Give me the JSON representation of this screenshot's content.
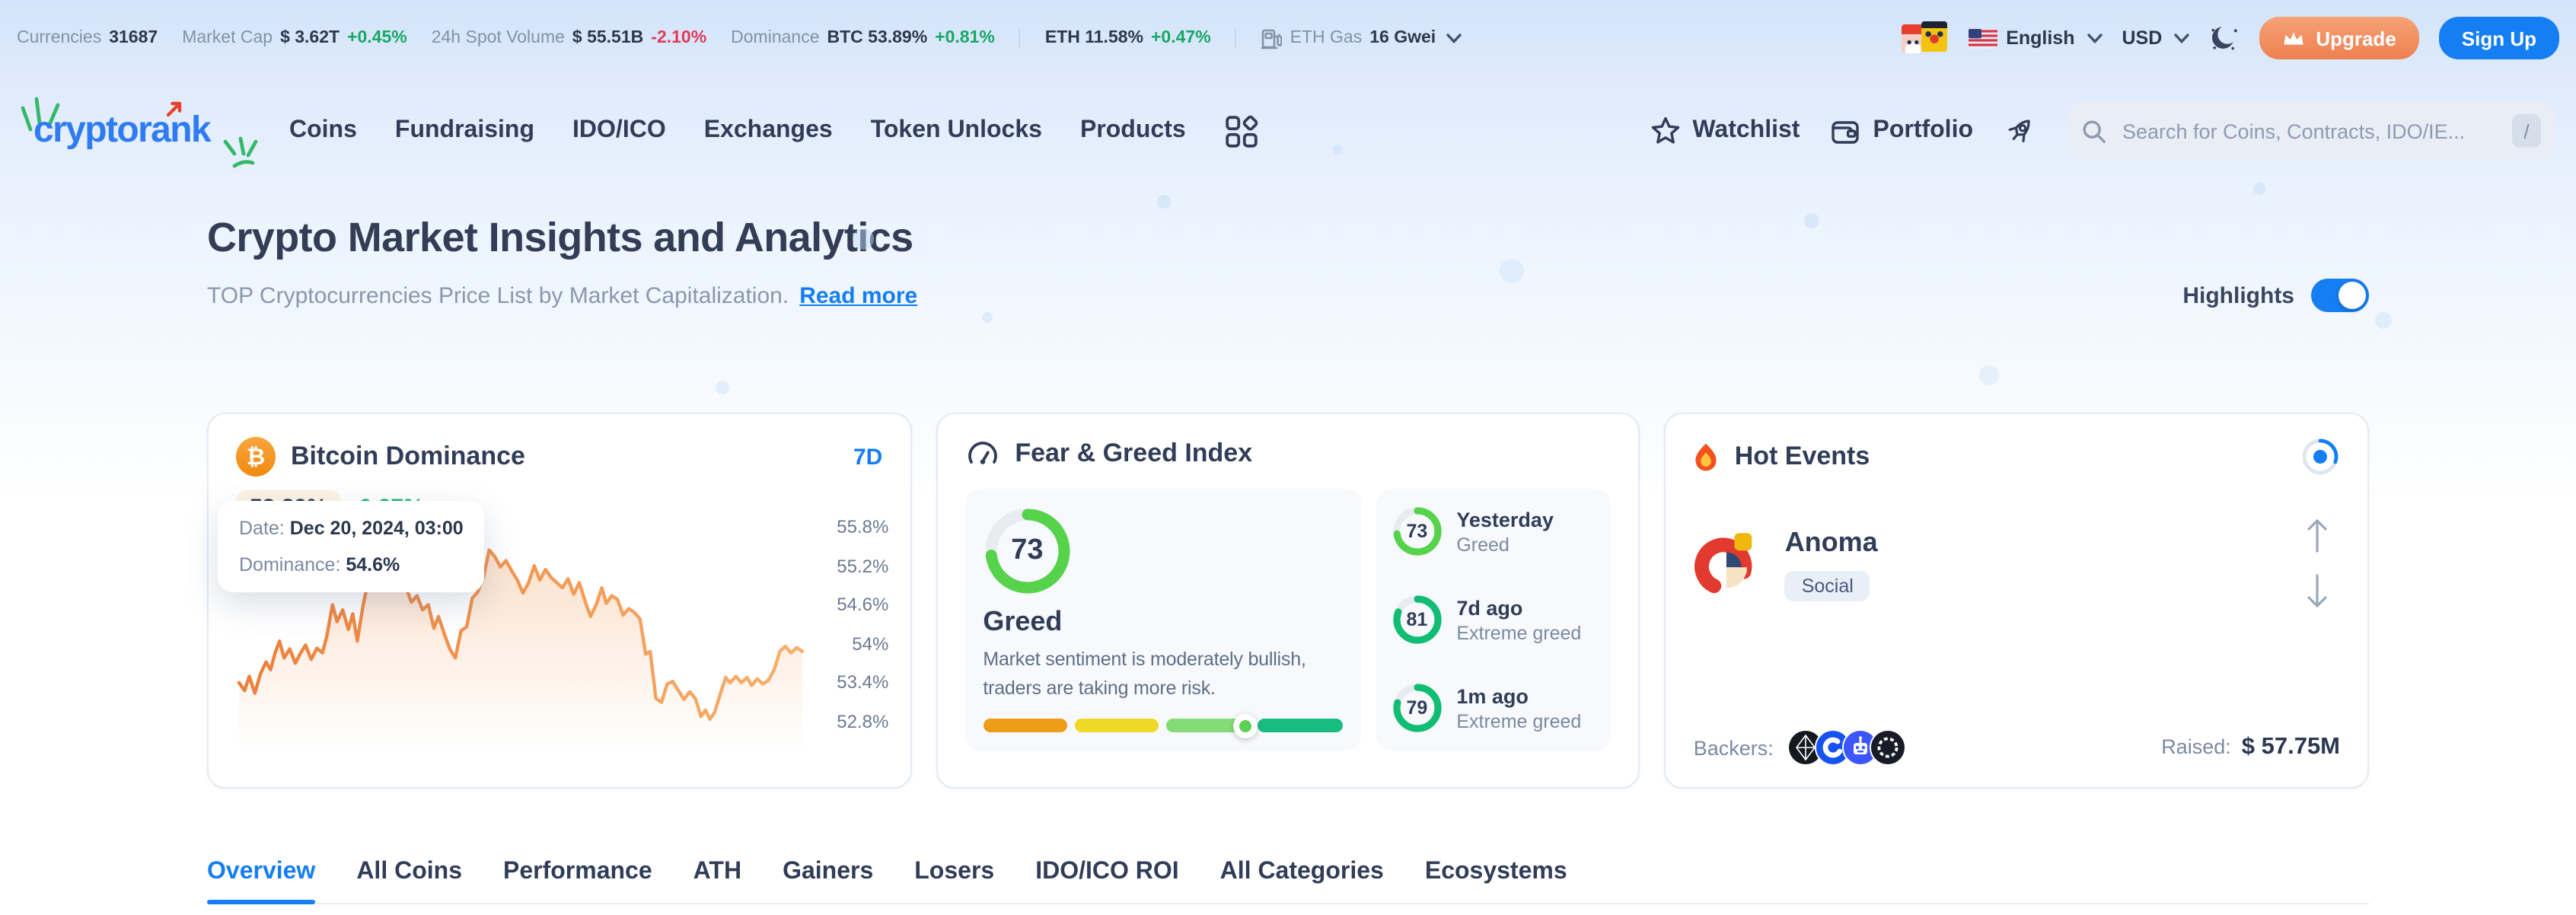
{
  "colors": {
    "accent_blue": "#157ef3",
    "positive_green": "#17a864",
    "negative_red": "#e13b56",
    "chart_line_orange": "#f08a48",
    "gauge_green": "#56d24b",
    "gauge_teal": "#10bd72",
    "upgrade_orange": "#ee8051",
    "value_badge_bg": "#fdf3e3"
  },
  "ticker": {
    "currencies_label": "Currencies",
    "currencies_value": "31687",
    "market_cap_label": "Market Cap",
    "market_cap_value": "$ 3.62T",
    "market_cap_change": "+0.45%",
    "volume_label": "24h Spot Volume",
    "volume_value": "$ 55.51B",
    "volume_change": "-2.10%",
    "dominance_label": "Dominance",
    "btc_value": "BTC 53.89%",
    "btc_change": "+0.81%",
    "eth_value": "ETH 11.58%",
    "eth_change": "+0.47%",
    "gas_label": "ETH Gas",
    "gas_value": "16 Gwei",
    "language": "English",
    "currency": "USD",
    "upgrade_label": "Upgrade",
    "signup_label": "Sign Up"
  },
  "nav": {
    "brand": "cryptorank",
    "links": [
      "Coins",
      "Fundraising",
      "IDO/ICO",
      "Exchanges",
      "Token Unlocks",
      "Products"
    ],
    "watchlist": "Watchlist",
    "portfolio": "Portfolio",
    "search_placeholder": "Search for Coins, Contracts, IDO/IE...",
    "search_shortcut": "/"
  },
  "hero": {
    "title": "Crypto Market Insights and Analytics",
    "subtitle": "TOP Cryptocurrencies Price List by Market Capitalization.",
    "read_more": "Read more",
    "highlights_label": "Highlights"
  },
  "dominance_card": {
    "title": "Bitcoin Dominance",
    "range": "7D",
    "value": "53.89%",
    "change": "0.27%",
    "tooltip": {
      "date_label": "Date:",
      "date": "Dec 20, 2024, 03:00",
      "dominance_label": "Dominance:",
      "dominance": "54.6%"
    },
    "y_labels": [
      "55.8%",
      "55.2%",
      "54.6%",
      "54%",
      "53.4%",
      "52.8%"
    ],
    "chart_data": {
      "type": "area",
      "x_range": "7D",
      "y_unit": "%",
      "ylim": [
        52.4,
        56.1
      ],
      "points": [
        [
          0,
          53.42
        ],
        [
          0.01,
          53.3
        ],
        [
          0.018,
          53.52
        ],
        [
          0.028,
          53.26
        ],
        [
          0.038,
          53.56
        ],
        [
          0.048,
          53.74
        ],
        [
          0.056,
          53.62
        ],
        [
          0.064,
          53.88
        ],
        [
          0.072,
          54.06
        ],
        [
          0.08,
          53.8
        ],
        [
          0.09,
          53.94
        ],
        [
          0.1,
          53.72
        ],
        [
          0.108,
          53.86
        ],
        [
          0.118,
          54.0
        ],
        [
          0.128,
          53.78
        ],
        [
          0.138,
          53.95
        ],
        [
          0.148,
          53.88
        ],
        [
          0.156,
          54.14
        ],
        [
          0.166,
          54.62
        ],
        [
          0.174,
          54.36
        ],
        [
          0.184,
          54.54
        ],
        [
          0.194,
          54.24
        ],
        [
          0.202,
          54.48
        ],
        [
          0.21,
          54.06
        ],
        [
          0.22,
          54.6
        ],
        [
          0.23,
          55.02
        ],
        [
          0.24,
          55.48
        ],
        [
          0.248,
          55.3
        ],
        [
          0.258,
          55.58
        ],
        [
          0.268,
          55.52
        ],
        [
          0.276,
          55.18
        ],
        [
          0.286,
          55.34
        ],
        [
          0.296,
          54.9
        ],
        [
          0.306,
          54.66
        ],
        [
          0.316,
          54.76
        ],
        [
          0.326,
          54.54
        ],
        [
          0.336,
          54.62
        ],
        [
          0.346,
          54.26
        ],
        [
          0.354,
          54.44
        ],
        [
          0.364,
          54.18
        ],
        [
          0.374,
          53.94
        ],
        [
          0.384,
          53.8
        ],
        [
          0.394,
          54.22
        ],
        [
          0.404,
          54.28
        ],
        [
          0.414,
          54.72
        ],
        [
          0.424,
          54.82
        ],
        [
          0.434,
          55.04
        ],
        [
          0.444,
          55.46
        ],
        [
          0.454,
          55.36
        ],
        [
          0.464,
          55.2
        ],
        [
          0.474,
          55.3
        ],
        [
          0.484,
          55.14
        ],
        [
          0.494,
          55.0
        ],
        [
          0.504,
          54.8
        ],
        [
          0.514,
          54.96
        ],
        [
          0.524,
          55.22
        ],
        [
          0.534,
          55.0
        ],
        [
          0.544,
          55.16
        ],
        [
          0.554,
          55.04
        ],
        [
          0.564,
          54.96
        ],
        [
          0.574,
          54.88
        ],
        [
          0.584,
          55.02
        ],
        [
          0.594,
          54.78
        ],
        [
          0.604,
          54.96
        ],
        [
          0.614,
          54.68
        ],
        [
          0.624,
          54.44
        ],
        [
          0.634,
          54.62
        ],
        [
          0.644,
          54.88
        ],
        [
          0.652,
          54.64
        ],
        [
          0.662,
          54.76
        ],
        [
          0.672,
          54.7
        ],
        [
          0.682,
          54.46
        ],
        [
          0.692,
          54.56
        ],
        [
          0.702,
          54.5
        ],
        [
          0.712,
          54.4
        ],
        [
          0.722,
          53.86
        ],
        [
          0.73,
          53.9
        ],
        [
          0.74,
          53.18
        ],
        [
          0.75,
          53.12
        ],
        [
          0.76,
          53.4
        ],
        [
          0.77,
          53.44
        ],
        [
          0.78,
          53.3
        ],
        [
          0.79,
          53.16
        ],
        [
          0.8,
          53.28
        ],
        [
          0.81,
          53.18
        ],
        [
          0.82,
          52.9
        ],
        [
          0.828,
          53.0
        ],
        [
          0.836,
          52.86
        ],
        [
          0.844,
          52.96
        ],
        [
          0.854,
          53.24
        ],
        [
          0.864,
          53.5
        ],
        [
          0.872,
          53.42
        ],
        [
          0.882,
          53.52
        ],
        [
          0.892,
          53.42
        ],
        [
          0.902,
          53.5
        ],
        [
          0.91,
          53.38
        ],
        [
          0.92,
          53.48
        ],
        [
          0.93,
          53.4
        ],
        [
          0.94,
          53.46
        ],
        [
          0.95,
          53.62
        ],
        [
          0.96,
          53.9
        ],
        [
          0.97,
          53.98
        ],
        [
          0.98,
          53.88
        ],
        [
          0.99,
          53.96
        ],
        [
          1,
          53.9
        ]
      ]
    }
  },
  "fear_greed_card": {
    "title": "Fear & Greed Index",
    "current": {
      "value": 73,
      "label": "Greed",
      "description": "Market sentiment is moderately bullish, traders are taking more risk."
    },
    "history": [
      {
        "value": 73,
        "period": "Yesterday",
        "label": "Greed"
      },
      {
        "value": 81,
        "period": "7d ago",
        "label": "Extreme greed"
      },
      {
        "value": 79,
        "period": "1m ago",
        "label": "Extreme greed"
      }
    ]
  },
  "hot_events_card": {
    "title": "Hot Events",
    "event_name": "Anoma",
    "event_tag": "Social",
    "backers_label": "Backers:",
    "backers_icons": [
      "diamond-lattice-logo",
      "coinbase-c-logo",
      "robot-logo",
      "chain-ring-logo"
    ],
    "raised_label": "Raised:",
    "raised_value": "$ 57.75M"
  },
  "tabs": {
    "active_index": 0,
    "items": [
      "Overview",
      "All Coins",
      "Performance",
      "ATH",
      "Gainers",
      "Losers",
      "IDO/ICO ROI",
      "All Categories",
      "Ecosystems"
    ]
  }
}
